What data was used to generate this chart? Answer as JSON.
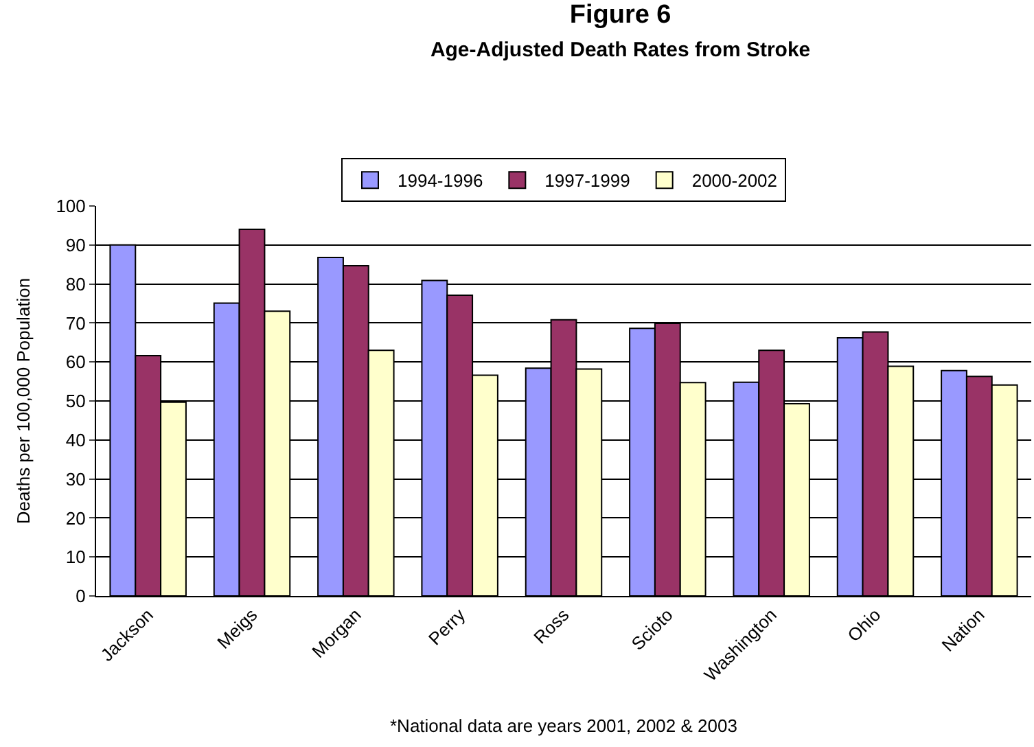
{
  "chart_data": {
    "type": "bar",
    "title": "Figure 6",
    "subtitle": "Age-Adjusted Death Rates from Stroke",
    "ylabel": "Deaths per 100,000 Population",
    "categories": [
      "Jackson",
      "Meigs",
      "Morgan",
      "Perry",
      "Ross",
      "Scioto",
      "Washington",
      "Ohio",
      "Nation"
    ],
    "series": [
      {
        "name": "1994-1996",
        "color": "#9999ff",
        "values": [
          90,
          75.1,
          86.8,
          80.9,
          58.4,
          68.6,
          54.8,
          66.2,
          57.8
        ]
      },
      {
        "name": "1997-1999",
        "color": "#993366",
        "values": [
          61.6,
          94,
          84.7,
          77.1,
          70.8,
          69.9,
          63,
          67.7,
          56.3
        ]
      },
      {
        "name": "2000-2002",
        "color": "#ffffcc",
        "values": [
          49.7,
          73,
          63,
          56.6,
          58.2,
          54.7,
          49.3,
          58.9,
          54.1
        ]
      }
    ],
    "ylim": [
      0,
      100
    ],
    "yticks": [
      0,
      10,
      20,
      30,
      40,
      50,
      60,
      70,
      80,
      90,
      100
    ],
    "grid": "y",
    "legend": "top",
    "annotations": [
      "*National data are years 2001, 2002 & 2003"
    ]
  }
}
